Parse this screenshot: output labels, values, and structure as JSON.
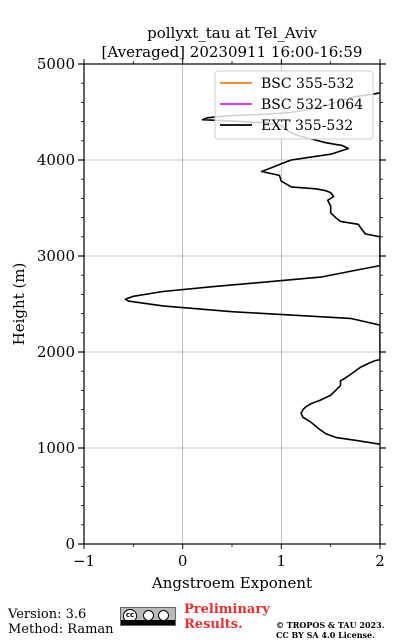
{
  "chart_data": {
    "type": "line",
    "title": "pollyxt_tau at Tel_Aviv",
    "subtitle": "[Averaged] 20230911 16:00-16:59",
    "xlabel": "Angstroem Exponent",
    "ylabel": "Height (m)",
    "xlim": [
      -1,
      2
    ],
    "ylim": [
      0,
      5000
    ],
    "xticks": [
      -1,
      0,
      1,
      2
    ],
    "xtick_labels": [
      "−1",
      "0",
      "1",
      "2"
    ],
    "yticks": [
      0,
      1000,
      2000,
      3000,
      4000,
      5000
    ],
    "ytick_labels": [
      "0",
      "1000",
      "2000",
      "3000",
      "4000",
      "5000"
    ],
    "grid": true,
    "legend_position": "top-right",
    "series": [
      {
        "name": "BSC 355-532",
        "color": "#ff7f0e",
        "points": []
      },
      {
        "name": "BSC 532-1064",
        "color": "#e020e0",
        "points": []
      },
      {
        "name": "EXT 355-532",
        "color": "#000000",
        "points": [
          [
            2.0,
            1040
          ],
          [
            1.75,
            1080
          ],
          [
            1.55,
            1110
          ],
          [
            1.45,
            1150
          ],
          [
            1.38,
            1200
          ],
          [
            1.3,
            1270
          ],
          [
            1.22,
            1320
          ],
          [
            1.2,
            1360
          ],
          [
            1.22,
            1400
          ],
          [
            1.25,
            1430
          ],
          [
            1.3,
            1460
          ],
          [
            1.4,
            1500
          ],
          [
            1.5,
            1550
          ],
          [
            1.55,
            1600
          ],
          [
            1.6,
            1650
          ],
          [
            1.6,
            1700
          ],
          [
            1.65,
            1730
          ],
          [
            1.72,
            1780
          ],
          [
            1.8,
            1840
          ],
          [
            1.88,
            1880
          ],
          [
            1.95,
            1910
          ],
          [
            2.0,
            1920
          ],
          [
            2.0,
            2280
          ],
          [
            1.7,
            2350
          ],
          [
            0.5,
            2420
          ],
          [
            -0.2,
            2480
          ],
          [
            -0.55,
            2530
          ],
          [
            -0.58,
            2550
          ],
          [
            -0.5,
            2580
          ],
          [
            -0.2,
            2630
          ],
          [
            0.3,
            2680
          ],
          [
            1.4,
            2780
          ],
          [
            1.8,
            2860
          ],
          [
            2.0,
            2900
          ],
          [
            2.0,
            3200
          ],
          [
            1.85,
            3230
          ],
          [
            1.8,
            3300
          ],
          [
            1.78,
            3330
          ],
          [
            1.6,
            3360
          ],
          [
            1.55,
            3400
          ],
          [
            1.5,
            3450
          ],
          [
            1.5,
            3520
          ],
          [
            1.47,
            3580
          ],
          [
            1.53,
            3620
          ],
          [
            1.5,
            3660
          ],
          [
            1.45,
            3680
          ],
          [
            1.35,
            3700
          ],
          [
            1.1,
            3720
          ],
          [
            1.0,
            3780
          ],
          [
            0.98,
            3840
          ],
          [
            0.8,
            3880
          ],
          [
            0.9,
            3920
          ],
          [
            1.0,
            3960
          ],
          [
            1.1,
            4000
          ],
          [
            1.3,
            4030
          ],
          [
            1.5,
            4060
          ],
          [
            1.68,
            4120
          ],
          [
            1.62,
            4150
          ],
          [
            1.45,
            4180
          ],
          [
            1.3,
            4220
          ],
          [
            1.15,
            4260
          ],
          [
            1.05,
            4310
          ],
          [
            1.0,
            4360
          ],
          [
            0.8,
            4390
          ],
          [
            0.4,
            4410
          ],
          [
            0.2,
            4420
          ],
          [
            0.25,
            4440
          ],
          [
            0.45,
            4460
          ],
          [
            0.8,
            4475
          ],
          [
            1.1,
            4495
          ],
          [
            1.35,
            4540
          ],
          [
            1.5,
            4580
          ],
          [
            1.6,
            4620
          ],
          [
            1.75,
            4660
          ],
          [
            1.95,
            4690
          ],
          [
            2.0,
            4700
          ]
        ]
      }
    ]
  },
  "footer": {
    "version": "Version: 3.6",
    "method": "Method: Raman",
    "preliminary_line1": "Preliminary",
    "preliminary_line2": "Results.",
    "copyright_line1": "© TROPOS & TAU 2023.",
    "copyright_line2": "CC BY SA 4.0 License.",
    "license_icon": "cc-by-sa-icon"
  }
}
